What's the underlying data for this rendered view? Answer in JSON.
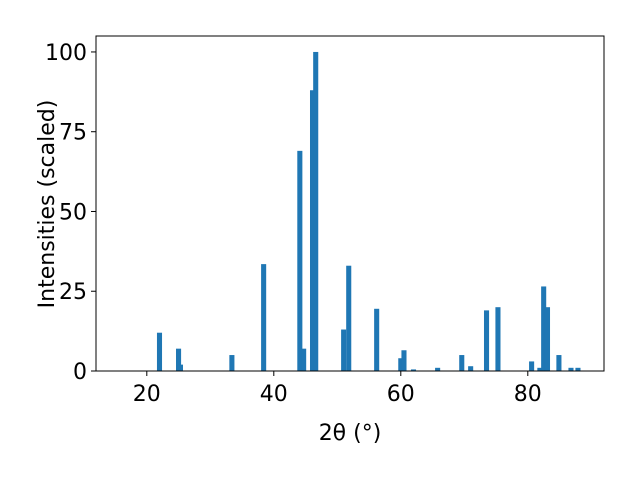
{
  "chart_data": {
    "type": "bar",
    "x_label": "2θ (°)",
    "y_label": "Intensities (scaled)",
    "x": [
      22,
      25,
      25.3,
      33.4,
      38.4,
      44.1,
      44.7,
      46.1,
      46.6,
      51.0,
      51.8,
      56.2,
      60.0,
      60.5,
      62.0,
      65.8,
      69.6,
      71.0,
      73.5,
      75.3,
      80.6,
      81.9,
      82.5,
      83.1,
      84.9,
      86.8,
      87.9
    ],
    "values": [
      12,
      7,
      2,
      5,
      33.5,
      69,
      7,
      88,
      100,
      13,
      33,
      19.5,
      4,
      6.5,
      0.5,
      1,
      5,
      1.5,
      19,
      20,
      3,
      1,
      26.5,
      20,
      5,
      1,
      1
    ],
    "color": "#1f77b4",
    "xlim": [
      12,
      92
    ],
    "xticks": [
      20,
      40,
      60,
      80
    ],
    "ylim": [
      0,
      105
    ],
    "yticks": [
      0,
      25,
      50,
      75,
      100
    ]
  }
}
